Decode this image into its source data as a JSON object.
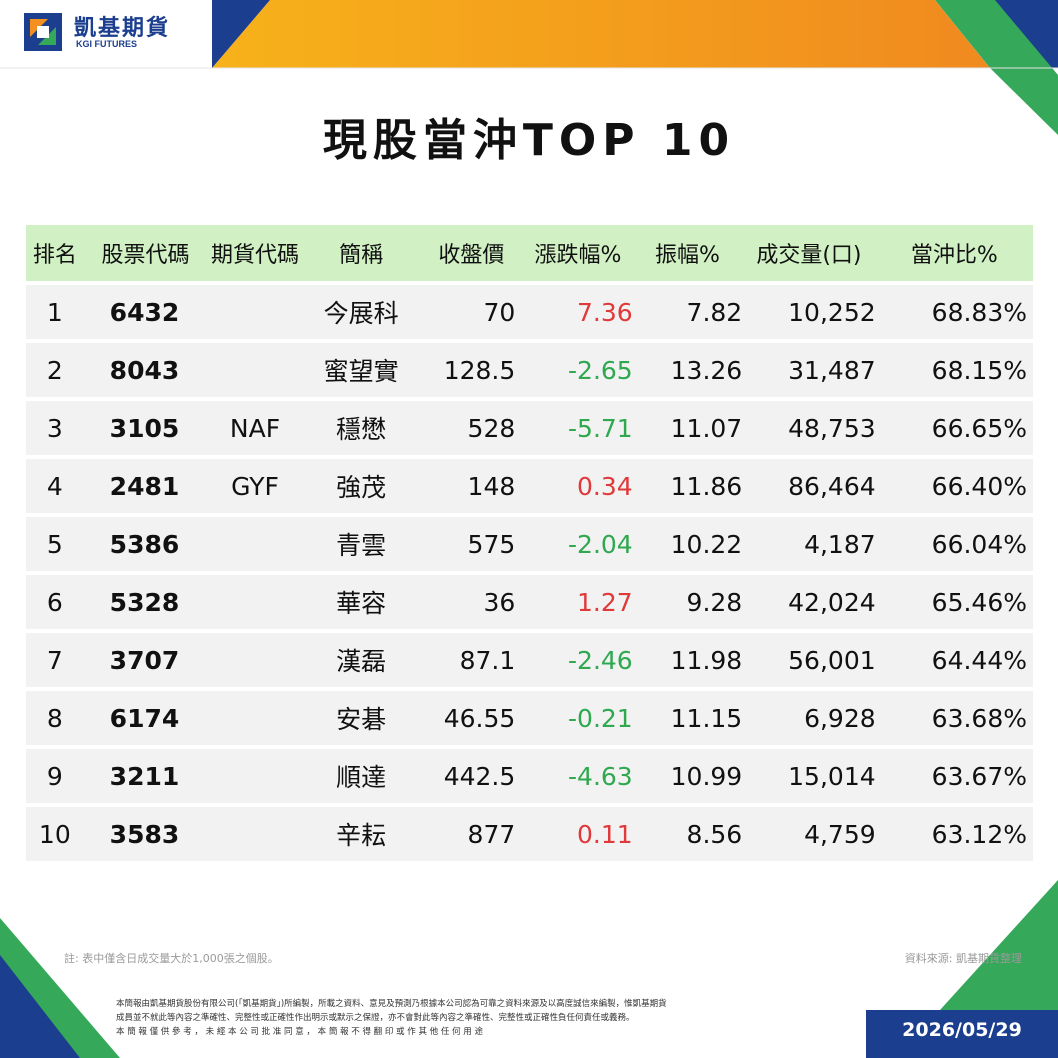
{
  "brand": {
    "name_cn": "凱基期貨",
    "name_en": "KGI FUTURES"
  },
  "title": "現股當沖TOP 10",
  "table": {
    "headers": [
      "排名",
      "股票代碼",
      "期貨代碼",
      "簡稱",
      "收盤價",
      "漲跌幅%",
      "振幅%",
      "成交量(口)",
      "當沖比%"
    ],
    "rows": [
      {
        "rank": "1",
        "code": "6432",
        "fut": "",
        "name": "今展科",
        "close": "70",
        "chg": "7.36",
        "dir": "up",
        "amp": "7.82",
        "vol": "10,252",
        "ratio": "68.83%"
      },
      {
        "rank": "2",
        "code": "8043",
        "fut": "",
        "name": "蜜望實",
        "close": "128.5",
        "chg": "-2.65",
        "dir": "down",
        "amp": "13.26",
        "vol": "31,487",
        "ratio": "68.15%"
      },
      {
        "rank": "3",
        "code": "3105",
        "fut": "NAF",
        "name": "穩懋",
        "close": "528",
        "chg": "-5.71",
        "dir": "down",
        "amp": "11.07",
        "vol": "48,753",
        "ratio": "66.65%"
      },
      {
        "rank": "4",
        "code": "2481",
        "fut": "GYF",
        "name": "強茂",
        "close": "148",
        "chg": "0.34",
        "dir": "up",
        "amp": "11.86",
        "vol": "86,464",
        "ratio": "66.40%"
      },
      {
        "rank": "5",
        "code": "5386",
        "fut": "",
        "name": "青雲",
        "close": "575",
        "chg": "-2.04",
        "dir": "down",
        "amp": "10.22",
        "vol": "4,187",
        "ratio": "66.04%"
      },
      {
        "rank": "6",
        "code": "5328",
        "fut": "",
        "name": "華容",
        "close": "36",
        "chg": "1.27",
        "dir": "up",
        "amp": "9.28",
        "vol": "42,024",
        "ratio": "65.46%"
      },
      {
        "rank": "7",
        "code": "3707",
        "fut": "",
        "name": "漢磊",
        "close": "87.1",
        "chg": "-2.46",
        "dir": "down",
        "amp": "11.98",
        "vol": "56,001",
        "ratio": "64.44%"
      },
      {
        "rank": "8",
        "code": "6174",
        "fut": "",
        "name": "安碁",
        "close": "46.55",
        "chg": "-0.21",
        "dir": "down",
        "amp": "11.15",
        "vol": "6,928",
        "ratio": "63.68%"
      },
      {
        "rank": "9",
        "code": "3211",
        "fut": "",
        "name": "順達",
        "close": "442.5",
        "chg": "-4.63",
        "dir": "down",
        "amp": "10.99",
        "vol": "15,014",
        "ratio": "63.67%"
      },
      {
        "rank": "10",
        "code": "3583",
        "fut": "",
        "name": "辛耘",
        "close": "877",
        "chg": "0.11",
        "dir": "up",
        "amp": "8.56",
        "vol": "4,759",
        "ratio": "63.12%"
      }
    ]
  },
  "note": "註: 表中僅含日成交量大於1,000張之個股。",
  "source": "資料來源: 凱基期貨整理",
  "disclaimer": [
    "本簡報由凱基期貨股份有限公司(「凱基期貨」)所編製，所載之資料、意見及預測乃根據本公司認為可靠之資料來源及以高度誠信來編製，惟凱基期貨",
    "成員並不就此等內容之準確性、完整性或正確性作出明示或默示之保證，亦不會對此等內容之準確性、完整性或正確性負任何責任或義務。",
    "本 簡 報 僅 供 參 考 ， 未 經 本 公 司 批 准 同 意 ， 本 簡 報 不 得 翻 印 或 作 其 他 任 何 用 途"
  ],
  "date": "2026/05/29",
  "colors": {
    "brand_blue": "#1c3e8e",
    "orange": "#f39020",
    "green": "#36a85a",
    "header_green": "#d1f1c4",
    "up_red": "#e0393a",
    "down_green": "#2fa84f"
  }
}
